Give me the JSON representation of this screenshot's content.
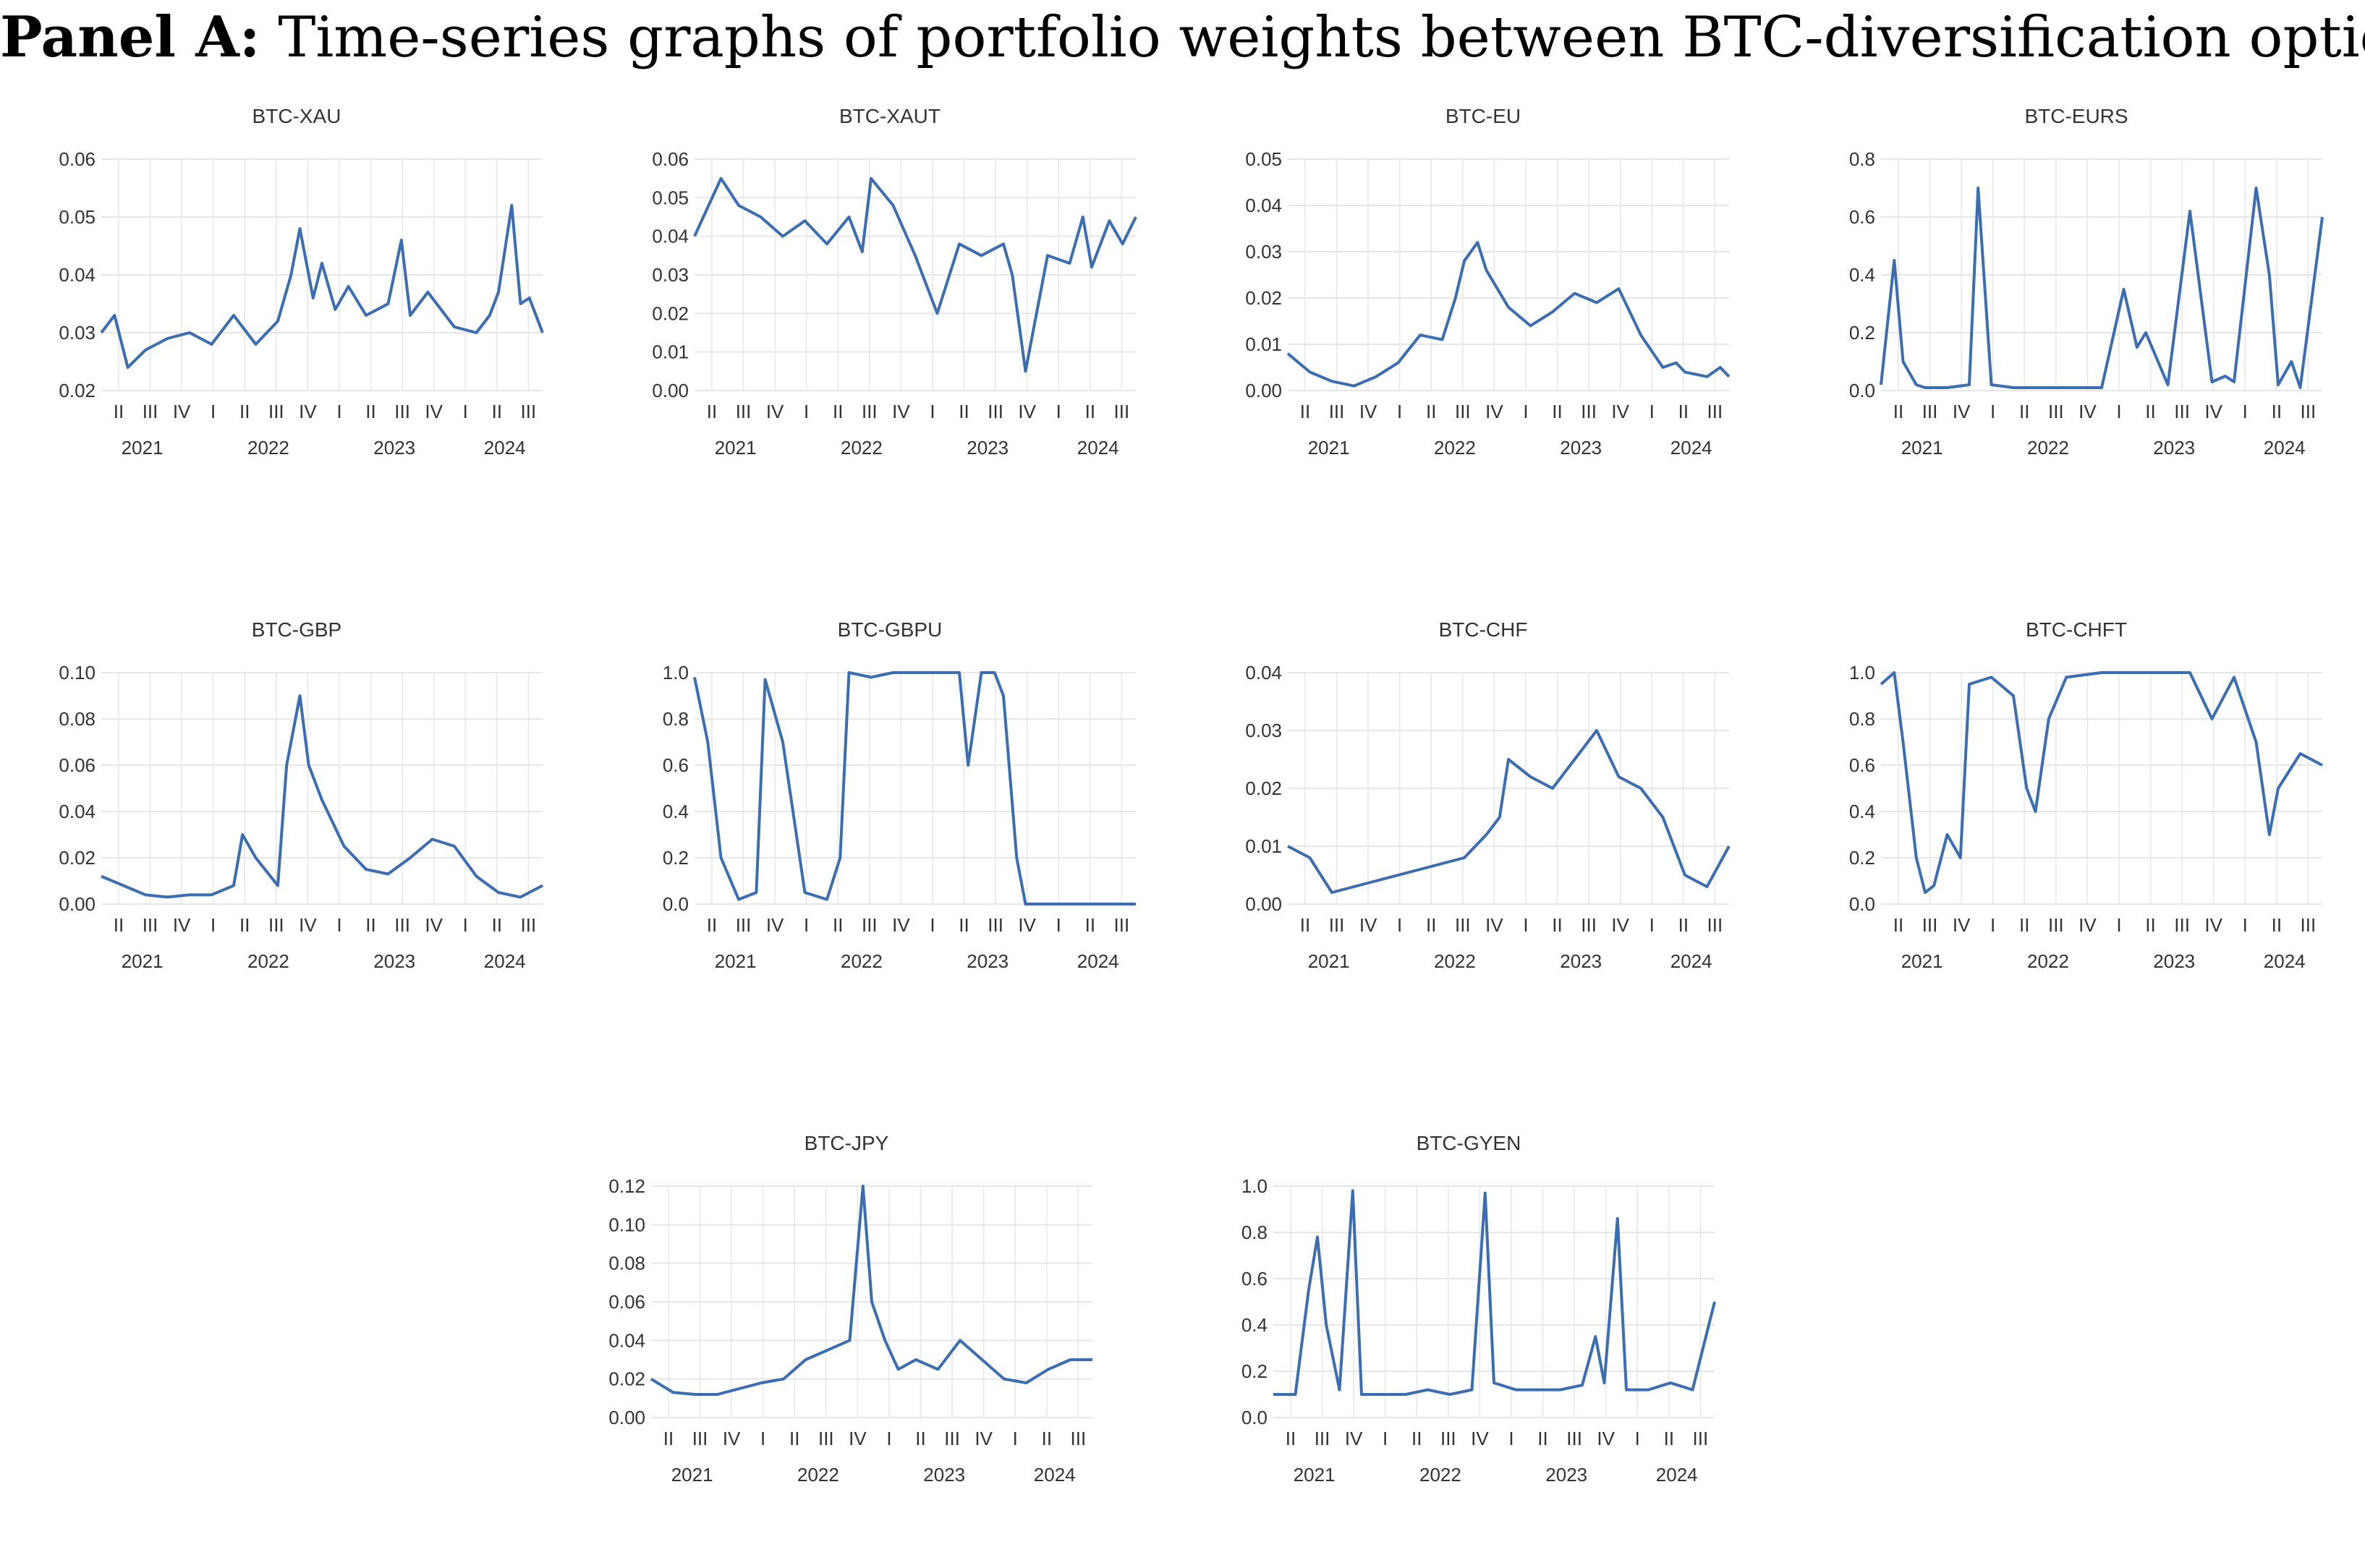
{
  "panel": {
    "label": "Panel A:",
    "title": "Time-series graphs of portfolio weights between BTC-diversification options"
  },
  "style": {
    "line_color": "#3b6db3",
    "grid_color": "#e6e6e6",
    "text_color": "#333333"
  },
  "time_axis": {
    "quarter_labels": [
      "II",
      "III",
      "IV",
      "I",
      "II",
      "III",
      "IV",
      "I",
      "II",
      "III",
      "IV",
      "I",
      "II",
      "III"
    ],
    "year_labels": [
      "2021",
      "2022",
      "2023",
      "2024"
    ]
  },
  "chart_data": [
    {
      "type": "line",
      "title": "BTC-XAU",
      "ylim": [
        0.02,
        0.06
      ],
      "yticks": [
        "0.02",
        "0.03",
        "0.04",
        "0.05",
        "0.06"
      ],
      "x": [
        0,
        0.03,
        0.06,
        0.1,
        0.15,
        0.2,
        0.25,
        0.3,
        0.35,
        0.4,
        0.43,
        0.45,
        0.48,
        0.5,
        0.53,
        0.56,
        0.6,
        0.65,
        0.68,
        0.7,
        0.74,
        0.8,
        0.85,
        0.88,
        0.9,
        0.93,
        0.95,
        0.97,
        1.0
      ],
      "values": [
        0.03,
        0.033,
        0.024,
        0.027,
        0.029,
        0.03,
        0.028,
        0.033,
        0.028,
        0.032,
        0.04,
        0.048,
        0.036,
        0.042,
        0.034,
        0.038,
        0.033,
        0.035,
        0.046,
        0.033,
        0.037,
        0.031,
        0.03,
        0.033,
        0.037,
        0.052,
        0.035,
        0.036,
        0.03
      ]
    },
    {
      "type": "line",
      "title": "BTC-XAUT",
      "ylim": [
        0,
        0.06
      ],
      "yticks": [
        "0.00",
        "0.01",
        "0.02",
        "0.03",
        "0.04",
        "0.05",
        "0.06"
      ],
      "x": [
        0,
        0.02,
        0.06,
        0.1,
        0.15,
        0.2,
        0.25,
        0.3,
        0.35,
        0.38,
        0.4,
        0.45,
        0.5,
        0.55,
        0.6,
        0.65,
        0.7,
        0.72,
        0.75,
        0.8,
        0.85,
        0.88,
        0.9,
        0.94,
        0.97,
        1.0
      ],
      "values": [
        0.04,
        0.045,
        0.055,
        0.048,
        0.045,
        0.04,
        0.044,
        0.038,
        0.045,
        0.036,
        0.055,
        0.048,
        0.035,
        0.02,
        0.038,
        0.035,
        0.038,
        0.03,
        0.005,
        0.035,
        0.033,
        0.045,
        0.032,
        0.044,
        0.038,
        0.045
      ]
    },
    {
      "type": "line",
      "title": "BTC-EU",
      "ylim": [
        0,
        0.05
      ],
      "yticks": [
        "0.00",
        "0.01",
        "0.02",
        "0.03",
        "0.04",
        "0.05"
      ],
      "x": [
        0,
        0.05,
        0.1,
        0.15,
        0.2,
        0.25,
        0.3,
        0.35,
        0.38,
        0.4,
        0.43,
        0.45,
        0.5,
        0.55,
        0.6,
        0.65,
        0.7,
        0.75,
        0.8,
        0.85,
        0.88,
        0.9,
        0.95,
        0.98,
        1.0
      ],
      "values": [
        0.008,
        0.004,
        0.002,
        0.001,
        0.003,
        0.006,
        0.012,
        0.011,
        0.02,
        0.028,
        0.032,
        0.026,
        0.018,
        0.014,
        0.017,
        0.021,
        0.019,
        0.022,
        0.012,
        0.005,
        0.006,
        0.004,
        0.003,
        0.005,
        0.003
      ]
    },
    {
      "type": "line",
      "title": "BTC-EURS",
      "ylim": [
        0,
        0.8
      ],
      "yticks": [
        "0.0",
        "0.2",
        "0.4",
        "0.6",
        "0.8"
      ],
      "x": [
        0,
        0.03,
        0.05,
        0.08,
        0.1,
        0.15,
        0.2,
        0.22,
        0.25,
        0.3,
        0.4,
        0.5,
        0.55,
        0.58,
        0.6,
        0.65,
        0.7,
        0.75,
        0.78,
        0.8,
        0.85,
        0.88,
        0.9,
        0.93,
        0.95,
        1.0
      ],
      "values": [
        0.02,
        0.45,
        0.1,
        0.02,
        0.01,
        0.01,
        0.02,
        0.7,
        0.02,
        0.01,
        0.01,
        0.01,
        0.35,
        0.15,
        0.2,
        0.02,
        0.62,
        0.03,
        0.05,
        0.03,
        0.7,
        0.4,
        0.02,
        0.1,
        0.01,
        0.6
      ]
    },
    {
      "type": "line",
      "title": "BTC-GBP",
      "ylim": [
        0,
        0.1
      ],
      "yticks": [
        "0.00",
        "0.02",
        "0.04",
        "0.06",
        "0.08",
        "0.10"
      ],
      "x": [
        0,
        0.05,
        0.1,
        0.15,
        0.2,
        0.25,
        0.3,
        0.32,
        0.35,
        0.4,
        0.42,
        0.45,
        0.47,
        0.5,
        0.55,
        0.6,
        0.65,
        0.7,
        0.75,
        0.8,
        0.85,
        0.9,
        0.95,
        1.0
      ],
      "values": [
        0.012,
        0.008,
        0.004,
        0.003,
        0.004,
        0.004,
        0.008,
        0.03,
        0.02,
        0.008,
        0.06,
        0.09,
        0.06,
        0.045,
        0.025,
        0.015,
        0.013,
        0.02,
        0.028,
        0.025,
        0.012,
        0.005,
        0.003,
        0.008
      ]
    },
    {
      "type": "line",
      "title": "BTC-GBPU",
      "ylim": [
        0,
        1
      ],
      "yticks": [
        "0.0",
        "0.2",
        "0.4",
        "0.6",
        "0.8",
        "1.0"
      ],
      "x": [
        0,
        0.03,
        0.06,
        0.1,
        0.14,
        0.16,
        0.2,
        0.25,
        0.3,
        0.33,
        0.35,
        0.4,
        0.45,
        0.5,
        0.55,
        0.6,
        0.62,
        0.65,
        0.68,
        0.7,
        0.73,
        0.75,
        0.8,
        0.9,
        1.0
      ],
      "values": [
        0.98,
        0.7,
        0.2,
        0.02,
        0.05,
        0.97,
        0.7,
        0.05,
        0.02,
        0.2,
        1.0,
        0.98,
        1.0,
        1.0,
        1.0,
        1.0,
        0.6,
        1.0,
        1.0,
        0.9,
        0.2,
        0.0,
        0.0,
        0.0,
        0.0
      ]
    },
    {
      "type": "line",
      "title": "BTC-CHF",
      "ylim": [
        0,
        0.04
      ],
      "yticks": [
        "0.00",
        "0.01",
        "0.02",
        "0.03",
        "0.04"
      ],
      "x": [
        0,
        0.05,
        0.1,
        0.15,
        0.2,
        0.25,
        0.3,
        0.35,
        0.4,
        0.45,
        0.48,
        0.5,
        0.55,
        0.6,
        0.65,
        0.7,
        0.75,
        0.8,
        0.85,
        0.9,
        0.95,
        1.0
      ],
      "values": [
        0.01,
        0.008,
        0.002,
        0.003,
        0.004,
        0.005,
        0.006,
        0.007,
        0.008,
        0.012,
        0.015,
        0.025,
        0.022,
        0.02,
        0.025,
        0.03,
        0.022,
        0.02,
        0.015,
        0.005,
        0.003,
        0.01
      ]
    },
    {
      "type": "line",
      "title": "BTC-CHFT",
      "ylim": [
        0,
        1
      ],
      "yticks": [
        "0.0",
        "0.2",
        "0.4",
        "0.6",
        "0.8",
        "1.0"
      ],
      "x": [
        0,
        0.03,
        0.05,
        0.08,
        0.1,
        0.12,
        0.15,
        0.18,
        0.2,
        0.25,
        0.3,
        0.33,
        0.35,
        0.38,
        0.42,
        0.5,
        0.6,
        0.7,
        0.75,
        0.8,
        0.85,
        0.88,
        0.9,
        0.95,
        1.0
      ],
      "values": [
        0.95,
        1.0,
        0.7,
        0.2,
        0.05,
        0.08,
        0.3,
        0.2,
        0.95,
        0.98,
        0.9,
        0.5,
        0.4,
        0.8,
        0.98,
        1.0,
        1.0,
        1.0,
        0.8,
        0.98,
        0.7,
        0.3,
        0.5,
        0.65,
        0.6
      ]
    },
    {
      "type": "line",
      "title": "BTC-JPY",
      "ylim": [
        0,
        0.12
      ],
      "yticks": [
        "0.00",
        "0.02",
        "0.04",
        "0.06",
        "0.08",
        "0.10",
        "0.12"
      ],
      "x": [
        0,
        0.05,
        0.1,
        0.15,
        0.2,
        0.25,
        0.3,
        0.35,
        0.4,
        0.45,
        0.48,
        0.5,
        0.53,
        0.56,
        0.6,
        0.65,
        0.7,
        0.75,
        0.8,
        0.85,
        0.9,
        0.95,
        1.0
      ],
      "values": [
        0.02,
        0.013,
        0.012,
        0.012,
        0.015,
        0.018,
        0.02,
        0.03,
        0.035,
        0.04,
        0.12,
        0.06,
        0.04,
        0.025,
        0.03,
        0.025,
        0.04,
        0.03,
        0.02,
        0.018,
        0.025,
        0.03,
        0.03
      ]
    },
    {
      "type": "line",
      "title": "BTC-GYEN",
      "ylim": [
        0,
        1
      ],
      "yticks": [
        "0.0",
        "0.2",
        "0.4",
        "0.6",
        "0.8",
        "1.0"
      ],
      "x": [
        0,
        0.05,
        0.08,
        0.1,
        0.12,
        0.15,
        0.18,
        0.2,
        0.25,
        0.3,
        0.35,
        0.4,
        0.45,
        0.48,
        0.5,
        0.55,
        0.6,
        0.65,
        0.7,
        0.73,
        0.75,
        0.78,
        0.8,
        0.85,
        0.9,
        0.95,
        1.0
      ],
      "values": [
        0.1,
        0.1,
        0.55,
        0.78,
        0.4,
        0.12,
        0.98,
        0.1,
        0.1,
        0.1,
        0.12,
        0.1,
        0.12,
        0.97,
        0.15,
        0.12,
        0.12,
        0.12,
        0.14,
        0.35,
        0.15,
        0.86,
        0.12,
        0.12,
        0.15,
        0.12,
        0.5
      ]
    }
  ]
}
